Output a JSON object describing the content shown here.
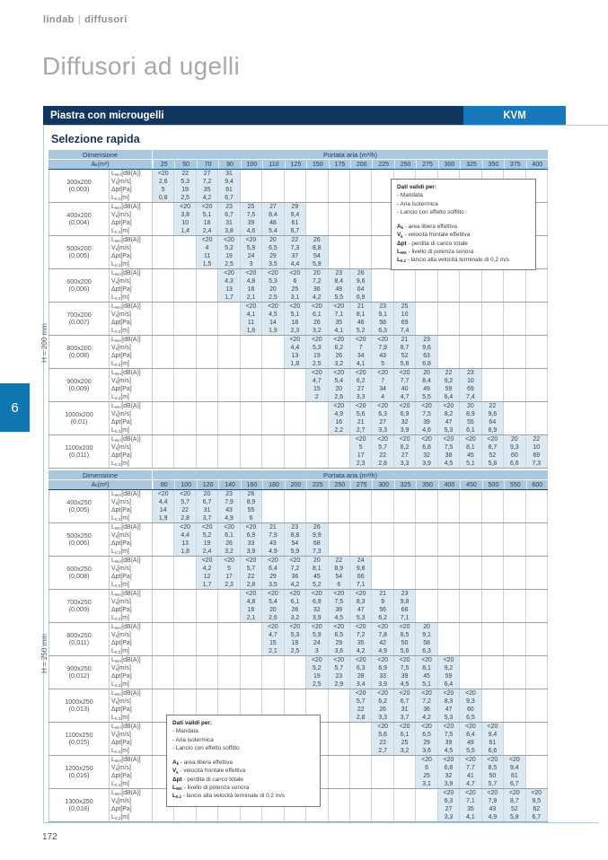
{
  "header": {
    "brand": "lindab",
    "section": "diffusori"
  },
  "title": "Diffusori ad ugelli",
  "banner": {
    "product": "Piastra con microugelli",
    "model": "KVM"
  },
  "section_heading": "Selezione rapida",
  "chapter_tab": "6",
  "page_number": "172",
  "colors": {
    "banner_navy": "#12375e",
    "banner_blue": "#1779b9",
    "header_band": "#a9c7dd",
    "cell_highlight": "#dbe7f1",
    "chapter_tab_blue": "#1076b4"
  },
  "legend_box": {
    "title": "Dati validi per:",
    "conditions": [
      "- Mandata",
      "- Aria isotermica",
      "- Lancio con effetto soffitto"
    ],
    "terms": [
      {
        "base": "A",
        "sub": "k",
        "desc": " - area libera effettiva"
      },
      {
        "base": "V",
        "sub": "k",
        "desc": " - velocità frontale effettiva"
      },
      {
        "base": "Δpt",
        "sub": "",
        "desc": " - perdita di carico totale"
      },
      {
        "base": "L",
        "sub": "WA",
        "desc": " - livello di potenza sonora"
      },
      {
        "base": "L",
        "sub": "0.2",
        "desc": " - lancio alla velocità terminale di 0,2 m/s"
      }
    ]
  },
  "row_labels": [
    {
      "base": "L",
      "sub": "WA",
      "rest": " [dB(A)]"
    },
    {
      "base": "V",
      "sub": "k",
      "rest": " [m/s]"
    },
    {
      "base": "Δpt",
      "sub": "",
      "rest": " [Pa]"
    },
    {
      "base": "L",
      "sub": "0.2",
      "rest": " [m]"
    }
  ],
  "tables": [
    {
      "side_label": "H = 200 mm",
      "header": {
        "dimensione": "Dimensione",
        "ak": {
          "base": "A",
          "sub": "k",
          "rest": " (m²)"
        },
        "portata": "Portata aria (m³/h)"
      },
      "columns": [
        "25",
        "50",
        "70",
        "90",
        "100",
        "110",
        "125",
        "150",
        "175",
        "200",
        "225",
        "250",
        "275",
        "300",
        "325",
        "350",
        "375",
        "400"
      ],
      "blocks": [
        {
          "dim": "300x200",
          "ak": "(0,003)",
          "start": 0,
          "rows": [
            [
              "<20",
              "22",
              "27",
              "31"
            ],
            [
              "2,6",
              "5,3",
              "7,2",
              "9,4"
            ],
            [
              "5",
              "19",
              "35",
              "61"
            ],
            [
              "0,8",
              "2,5",
              "4,2",
              "6,7"
            ]
          ]
        },
        {
          "dim": "400x200",
          "ak": "(0,004)",
          "start": 1,
          "rows": [
            [
              "<20",
              "<20",
              "23",
              "25",
              "27",
              "29"
            ],
            [
              "3,8",
              "5,1",
              "6,7",
              "7,5",
              "8,4",
              "9,4"
            ],
            [
              "10",
              "18",
              "31",
              "39",
              "48",
              "61"
            ],
            [
              "1,4",
              "2,4",
              "3,8",
              "4,6",
              "5,4",
              "6,7"
            ]
          ]
        },
        {
          "dim": "500x200",
          "ak": "(0,005)",
          "start": 2,
          "rows": [
            [
              "<20",
              "<20",
              "<20",
              "20",
              "22",
              "26"
            ],
            [
              "4",
              "5,2",
              "5,9",
              "6,5",
              "7,3",
              "8,8"
            ],
            [
              "11",
              "19",
              "24",
              "29",
              "37",
              "54"
            ],
            [
              "1,5",
              "2,5",
              "3",
              "3,5",
              "4,4",
              "5,9"
            ]
          ]
        },
        {
          "dim": "600x200",
          "ak": "(0,006)",
          "start": 3,
          "rows": [
            [
              "<20",
              "<20",
              "<20",
              "<20",
              "20",
              "23",
              "26"
            ],
            [
              "4,3",
              "4,8",
              "5,3",
              "6",
              "7,2",
              "8,4",
              "9,6"
            ],
            [
              "13",
              "16",
              "20",
              "25",
              "36",
              "49",
              "64"
            ],
            [
              "1,7",
              "2,1",
              "2,5",
              "3,1",
              "4,2",
              "5,5",
              "6,9"
            ]
          ]
        },
        {
          "dim": "700x200",
          "ak": "(0,007)",
          "start": 4,
          "rows": [
            [
              "<20",
              "<20",
              "<20",
              "<20",
              "<20",
              "21",
              "23",
              "25"
            ],
            [
              "4,1",
              "4,5",
              "5,1",
              "6,1",
              "7,1",
              "8,1",
              "9,1",
              "10"
            ],
            [
              "11",
              "14",
              "18",
              "26",
              "35",
              "46",
              "58",
              "69"
            ],
            [
              "1,6",
              "1,9",
              "2,3",
              "3,2",
              "4,1",
              "5,2",
              "6,3",
              "7,4"
            ]
          ]
        },
        {
          "dim": "800x200",
          "ak": "(0,008)",
          "start": 6,
          "rows": [
            [
              "<20",
              "<20",
              "<20",
              "<20",
              "<20",
              "21",
              "23"
            ],
            [
              "4,4",
              "5,3",
              "6,2",
              "7",
              "7,9",
              "8,7",
              "9,6"
            ],
            [
              "13",
              "19",
              "26",
              "34",
              "43",
              "52",
              "63"
            ],
            [
              "1,8",
              "2,5",
              "3,2",
              "4,1",
              "5",
              "5,8",
              "6,8"
            ]
          ]
        },
        {
          "dim": "900x200",
          "ak": "(0,009)",
          "start": 7,
          "rows": [
            [
              "<20",
              "<20",
              "<20",
              "<20",
              "<20",
              "20",
              "22",
              "23"
            ],
            [
              "4,7",
              "5,4",
              "6,2",
              "7",
              "7,7",
              "8,4",
              "9,2",
              "10"
            ],
            [
              "15",
              "20",
              "27",
              "34",
              "40",
              "49",
              "59",
              "69"
            ],
            [
              "2",
              "2,6",
              "3,3",
              "4",
              "4,7",
              "5,5",
              "6,4",
              "7,4"
            ]
          ]
        },
        {
          "dim": "1000x200",
          "ak": "(0,01)",
          "start": 8,
          "rows": [
            [
              "<20",
              "<20",
              "<20",
              "<20",
              "<20",
              "<20",
              "20",
              "22"
            ],
            [
              "4,9",
              "5,6",
              "6,3",
              "6,9",
              "7,5",
              "8,2",
              "8,9",
              "9,6"
            ],
            [
              "16",
              "21",
              "27",
              "32",
              "39",
              "47",
              "55",
              "64"
            ],
            [
              "2,2",
              "2,7",
              "3,3",
              "3,9",
              "4,6",
              "5,3",
              "6,1",
              "6,9"
            ]
          ]
        },
        {
          "dim": "1100x200",
          "ak": "(0,011)",
          "start": 9,
          "rows": [
            [
              "<20",
              "<20",
              "<20",
              "<20",
              "<20",
              "<20",
              "<20",
              "20",
              "22"
            ],
            [
              "5",
              "5,7",
              "6,2",
              "6,8",
              "7,5",
              "8,1",
              "8,7",
              "9,3",
              "10"
            ],
            [
              "17",
              "22",
              "27",
              "32",
              "38",
              "45",
              "52",
              "60",
              "69"
            ],
            [
              "2,3",
              "2,8",
              "3,3",
              "3,9",
              "4,5",
              "5,1",
              "5,8",
              "6,6",
              "7,3"
            ]
          ]
        }
      ]
    },
    {
      "side_label": "H = 250 mm",
      "header": {
        "dimensione": "Dimensione",
        "ak": {
          "base": "A",
          "sub": "k",
          "rest": " (m²)"
        },
        "portata": "Portata aria (m³/h)"
      },
      "columns": [
        "80",
        "100",
        "120",
        "140",
        "160",
        "180",
        "200",
        "225",
        "250",
        "275",
        "300",
        "325",
        "350",
        "400",
        "450",
        "500",
        "550",
        "600"
      ],
      "blocks": [
        {
          "dim": "400x250",
          "ak": "(0,005)",
          "start": 0,
          "rows": [
            [
              "<20",
              "<20",
              "20",
              "23",
              "26"
            ],
            [
              "4,4",
              "5,7",
              "6,7",
              "7,9",
              "8,9"
            ],
            [
              "14",
              "22",
              "31",
              "43",
              "55"
            ],
            [
              "1,9",
              "2,8",
              "3,7",
              "4,9",
              "6"
            ]
          ]
        },
        {
          "dim": "500x250",
          "ak": "(0,006)",
          "start": 1,
          "rows": [
            [
              "<20",
              "<20",
              "<20",
              "<20",
              "21",
              "23",
              "26"
            ],
            [
              "4,4",
              "5,2",
              "6,1",
              "6,9",
              "7,9",
              "8,8",
              "9,9"
            ],
            [
              "13",
              "19",
              "26",
              "33",
              "43",
              "54",
              "68"
            ],
            [
              "1,8",
              "2,4",
              "3,2",
              "3,9",
              "4,9",
              "5,9",
              "7,3"
            ]
          ]
        },
        {
          "dim": "600x250",
          "ak": "(0,008)",
          "start": 2,
          "rows": [
            [
              "<20",
              "<20",
              "<20",
              "<20",
              "<20",
              "20",
              "22",
              "24"
            ],
            [
              "4,2",
              "5",
              "5,7",
              "6,4",
              "7,2",
              "8,1",
              "8,9",
              "9,8"
            ],
            [
              "12",
              "17",
              "22",
              "29",
              "36",
              "45",
              "54",
              "66"
            ],
            [
              "1,7",
              "2,3",
              "2,8",
              "3,5",
              "4,2",
              "5,2",
              "6",
              "7,1"
            ]
          ]
        },
        {
          "dim": "700x250",
          "ak": "(0,009)",
          "start": 4,
          "rows": [
            [
              "<20",
              "<20",
              "<20",
              "<20",
              "<20",
              "<20",
              "21",
              "23"
            ],
            [
              "4,8",
              "5,4",
              "6,1",
              "6,9",
              "7,5",
              "8,3",
              "9",
              "9,8"
            ],
            [
              "16",
              "20",
              "26",
              "32",
              "39",
              "47",
              "56",
              "66"
            ],
            [
              "2,1",
              "2,6",
              "3,2",
              "3,9",
              "4,5",
              "5,3",
              "6,2",
              "7,1"
            ]
          ]
        },
        {
          "dim": "800x250",
          "ak": "(0,011)",
          "start": 5,
          "rows": [
            [
              "<20",
              "<20",
              "<20",
              "<20",
              "<20",
              "<20",
              "<20",
              "20"
            ],
            [
              "4,7",
              "5,3",
              "5,9",
              "6,5",
              "7,2",
              "7,8",
              "8,5",
              "9,1"
            ],
            [
              "15",
              "19",
              "24",
              "29",
              "35",
              "42",
              "50",
              "58"
            ],
            [
              "2,1",
              "2,5",
              "3",
              "3,6",
              "4,2",
              "4,9",
              "5,6",
              "6,3"
            ]
          ]
        },
        {
          "dim": "900x250",
          "ak": "(0,012)",
          "start": 7,
          "rows": [
            [
              "<20",
              "<20",
              "<20",
              "<20",
              "<20",
              "<20",
              "<20"
            ],
            [
              "5,2",
              "5,7",
              "6,3",
              "6,9",
              "7,5",
              "8,1",
              "9,2"
            ],
            [
              "19",
              "23",
              "28",
              "33",
              "39",
              "45",
              "59"
            ],
            [
              "2,5",
              "2,9",
              "3,4",
              "3,9",
              "4,5",
              "5,1",
              "6,4"
            ]
          ]
        },
        {
          "dim": "1000x250",
          "ak": "(0,013)",
          "start": 9,
          "rows": [
            [
              "<20",
              "<20",
              "<20",
              "<20",
              "<20",
              "<20"
            ],
            [
              "5,7",
              "6,2",
              "6,7",
              "7,2",
              "8,3",
              "9,3"
            ],
            [
              "22",
              "26",
              "31",
              "36",
              "47",
              "60"
            ],
            [
              "2,8",
              "3,3",
              "3,7",
              "4,2",
              "5,3",
              "6,5"
            ]
          ]
        },
        {
          "dim": "1100x250",
          "ak": "(0,015)",
          "start": 10,
          "rows": [
            [
              "<20",
              "<20",
              "<20",
              "<20",
              "<20",
              "<20"
            ],
            [
              "5,6",
              "6,1",
              "6,5",
              "7,5",
              "8,4",
              "9,4"
            ],
            [
              "22",
              "25",
              "29",
              "39",
              "49",
              "61"
            ],
            [
              "2,7",
              "3,2",
              "3,6",
              "4,5",
              "5,5",
              "6,6"
            ]
          ]
        },
        {
          "dim": "1200x250",
          "ak": "(0,016)",
          "start": 12,
          "rows": [
            [
              "<20",
              "<20",
              "<20",
              "<20",
              "<20"
            ],
            [
              "6",
              "6,8",
              "7,7",
              "8,5",
              "9,4"
            ],
            [
              "25",
              "32",
              "41",
              "50",
              "61"
            ],
            [
              "3,1",
              "3,9",
              "4,7",
              "5,7",
              "6,7"
            ]
          ]
        },
        {
          "dim": "1300x250",
          "ak": "(0,018)",
          "start": 13,
          "rows": [
            [
              "<20",
              "<20",
              "<20",
              "<20",
              "<20"
            ],
            [
              "6,3",
              "7,1",
              "7,9",
              "8,7",
              "9,5"
            ],
            [
              "27",
              "35",
              "43",
              "52",
              "62"
            ],
            [
              "3,3",
              "4,1",
              "4,9",
              "5,8",
              "6,7"
            ]
          ]
        }
      ]
    }
  ]
}
